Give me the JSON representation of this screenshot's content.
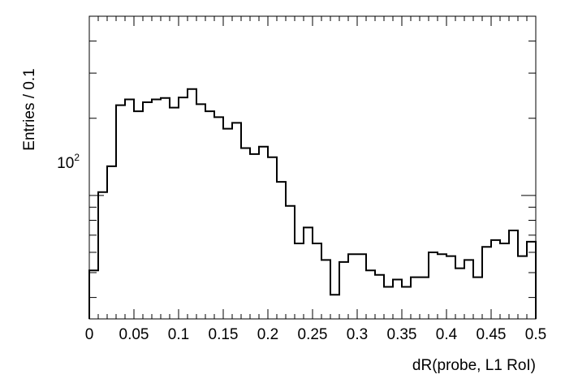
{
  "chart_data": {
    "type": "histogram",
    "xlabel": "dR(probe, L1 RoI)",
    "ylabel": "Entries / 0.1",
    "xlim": [
      0,
      0.5
    ],
    "ylim": [
      33,
      500
    ],
    "yscale": "log",
    "grid": false,
    "bin_width": 0.01,
    "x_ticks": [
      "0",
      "0.05",
      "0.1",
      "0.15",
      "0.2",
      "0.25",
      "0.3",
      "0.35",
      "0.4",
      "0.45",
      "0.5"
    ],
    "y_tick_label": {
      "base": "10",
      "exp": "2",
      "value": 100
    },
    "values": [
      51,
      103,
      130,
      225,
      237,
      213,
      231,
      237,
      240,
      220,
      241,
      260,
      227,
      213,
      202,
      182,
      192,
      153,
      145,
      155,
      141,
      113,
      91,
      65,
      75,
      65,
      56,
      41,
      55,
      59,
      59,
      51,
      49,
      44,
      47,
      44,
      48,
      48,
      60,
      59,
      58,
      52,
      56,
      48,
      63,
      67,
      65,
      73,
      58,
      66
    ]
  }
}
